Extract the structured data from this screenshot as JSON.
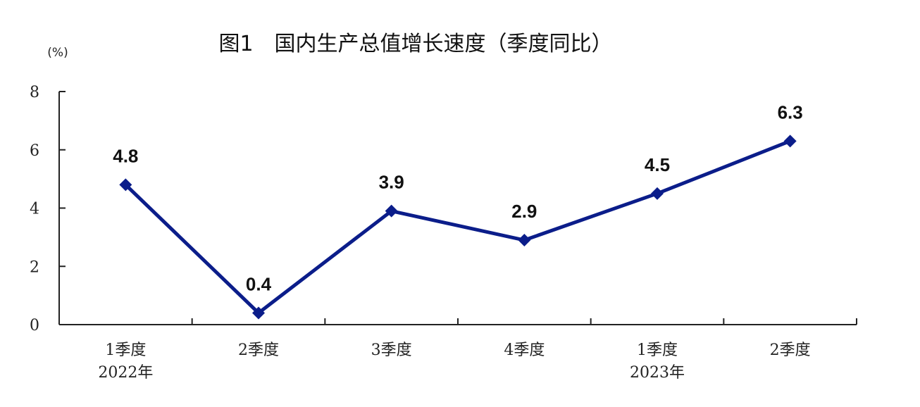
{
  "chart_data": {
    "type": "line",
    "title": "图1　国内生产总值增长速度（季度同比）",
    "unit": "(%)",
    "categories": [
      {
        "quarter": "1季度",
        "year": "2022年"
      },
      {
        "quarter": "2季度",
        "year": ""
      },
      {
        "quarter": "3季度",
        "year": ""
      },
      {
        "quarter": "4季度",
        "year": ""
      },
      {
        "quarter": "1季度",
        "year": "2023年"
      },
      {
        "quarter": "2季度",
        "year": ""
      }
    ],
    "series": [
      {
        "values": [
          4.8,
          0.4,
          3.9,
          2.9,
          4.5,
          6.3
        ],
        "data_labels": [
          "4.8",
          "0.4",
          "3.9",
          "2.9",
          "4.5",
          "6.3"
        ],
        "color": "#0b1d8a",
        "marker": "diamond"
      }
    ],
    "yticks": [
      "0",
      "2",
      "4",
      "6",
      "8"
    ],
    "ylim": [
      0,
      8
    ],
    "grid": false,
    "legend": "none"
  }
}
